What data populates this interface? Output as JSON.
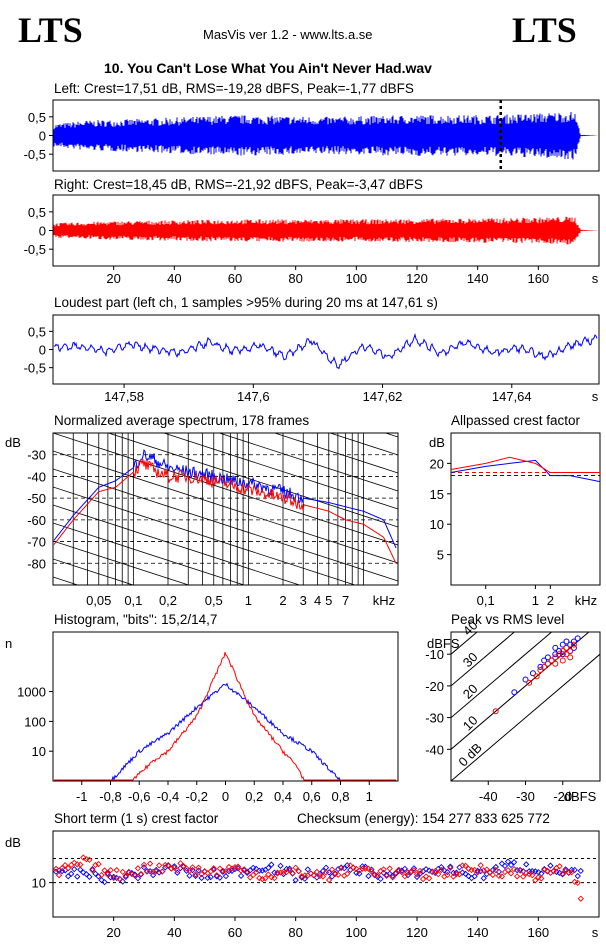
{
  "header": {
    "logo_left": "LTS",
    "logo_right": "LTS",
    "app_info": "MasVis ver 1.2 - www.lts.a.se",
    "file_title": "10. You Can't Lose What You Ain't Never Had.wav"
  },
  "colors": {
    "left": "#0000ff",
    "right": "#ff0000",
    "axis": "#000000",
    "background": "#ffffff"
  },
  "panels": {
    "left_wave": {
      "label": "Left: Crest=17,51 dB, RMS=-19,28 dBFS, Peak=-1,77 dBFS",
      "ticks": [
        "0,5",
        "0",
        "-0,5"
      ]
    },
    "right_wave": {
      "label": "Right: Crest=18,45 dB, RMS=-21,92 dBFS, Peak=-3,47 dBFS",
      "ticks": [
        "0,5",
        "0",
        "-0,5"
      ],
      "xticks": [
        "20",
        "40",
        "60",
        "80",
        "100",
        "120",
        "140",
        "160"
      ],
      "xunit": "s"
    },
    "loudest": {
      "label": "Loudest part (left  ch, 1 samples >95% during 20 ms at 147,61 s)",
      "ticks": [
        "0,5",
        "0",
        "-0,5"
      ],
      "xticks": [
        "147,58",
        "147,6",
        "147,62",
        "147,64"
      ],
      "xunit": "s"
    },
    "spectrum": {
      "label": "Normalized average spectrum, 178 frames",
      "yunit": "dB",
      "yticks": [
        "-30",
        "-40",
        "-50",
        "-60",
        "-70",
        "-80"
      ],
      "xticks": [
        "0,05",
        "0,1",
        "0,2",
        "0,5",
        "1",
        "2",
        "3",
        "4",
        "5",
        "7"
      ],
      "xunit": "kHz"
    },
    "allpass": {
      "label": "Allpassed crest factor",
      "yunit": "dB",
      "yticks": [
        "20",
        "15",
        "10",
        "5"
      ],
      "xticks": [
        "0,1",
        "1",
        "2"
      ],
      "xunit": "kHz"
    },
    "histogram": {
      "label": "Histogram, \"bits\": 15,2/14,7",
      "yunit": "n",
      "yticks": [
        "1000",
        "100",
        "10"
      ],
      "xticks": [
        "-1",
        "-0,8",
        "-0,6",
        "-0,4",
        "-0,2",
        "0",
        "0,2",
        "0,4",
        "0,6",
        "0,8",
        "1"
      ]
    },
    "peak_rms": {
      "label": "Peak vs RMS level",
      "yunit": "dBFS",
      "yticks": [
        "-10",
        "-20",
        "-30",
        "-40"
      ],
      "xticks": [
        "-40",
        "-30",
        "-20"
      ],
      "xunit": "dBFS",
      "diag_labels": [
        "40",
        "30",
        "20",
        "10",
        "0 dB"
      ]
    },
    "crest_short": {
      "label": "Short term (1 s) crest factor",
      "checksum": "Checksum (energy):   154 277 833 625 772",
      "yunit": "dB",
      "yticks": [
        "10"
      ],
      "xticks": [
        "20",
        "40",
        "60",
        "80",
        "100",
        "120",
        "140",
        "160"
      ],
      "xunit": "s"
    }
  },
  "chart_data": [
    {
      "type": "area",
      "title": "Left: Crest=17,51 dB, RMS=-19,28 dBFS, Peak=-1,77 dBFS",
      "ylim": [
        -0.95,
        0.95
      ],
      "xlim": [
        0,
        180
      ],
      "series": [
        {
          "name": "left",
          "envelope": [
            [
              0,
              0.3
            ],
            [
              10,
              0.4
            ],
            [
              30,
              0.45
            ],
            [
              60,
              0.55
            ],
            [
              90,
              0.5
            ],
            [
              120,
              0.55
            ],
            [
              145,
              0.55
            ],
            [
              160,
              0.6
            ],
            [
              172,
              0.65
            ],
            [
              174,
              0.02
            ],
            [
              180,
              0
            ]
          ]
        }
      ],
      "marker_x": 147.61
    },
    {
      "type": "area",
      "title": "Right: Crest=18,45 dB, RMS=-21,92 dBFS, Peak=-3,47 dBFS",
      "ylim": [
        -0.95,
        0.95
      ],
      "xlim": [
        0,
        180
      ],
      "series": [
        {
          "name": "right",
          "envelope": [
            [
              0,
              0.2
            ],
            [
              20,
              0.25
            ],
            [
              60,
              0.3
            ],
            [
              100,
              0.3
            ],
            [
              140,
              0.33
            ],
            [
              160,
              0.35
            ],
            [
              172,
              0.38
            ],
            [
              174,
              0.02
            ],
            [
              180,
              0
            ]
          ]
        }
      ]
    },
    {
      "type": "line",
      "title": "Loudest part (left  ch, 1 samples >95% during 20 ms at 147,61 s)",
      "ylim": [
        -0.95,
        0.95
      ],
      "xlim": [
        147.569,
        147.6535
      ],
      "series": [
        {
          "name": "left",
          "x": [
            147.569,
            147.573,
            147.577,
            147.581,
            147.585,
            147.589,
            147.593,
            147.597,
            147.601,
            147.605,
            147.609,
            147.613,
            147.617,
            147.621,
            147.625,
            147.629,
            147.633,
            147.637,
            147.641,
            147.645,
            147.649,
            147.653
          ],
          "y": [
            0.05,
            0.1,
            -0.05,
            0.15,
            0.0,
            -0.1,
            0.2,
            -0.05,
            0.1,
            -0.2,
            0.25,
            -0.45,
            0.1,
            -0.2,
            0.3,
            -0.1,
            0.2,
            -0.1,
            0.05,
            -0.2,
            0.1,
            0.3
          ]
        }
      ]
    },
    {
      "type": "line",
      "title": "Normalized average spectrum, 178 frames",
      "xscale": "log",
      "xlim": [
        0.02,
        20
      ],
      "ylim": [
        -90,
        -20
      ],
      "series": [
        {
          "name": "left",
          "x": [
            0.02,
            0.03,
            0.05,
            0.07,
            0.1,
            0.12,
            0.15,
            0.2,
            0.3,
            0.5,
            0.7,
            1,
            2,
            3,
            5,
            7,
            10,
            15,
            20
          ],
          "y": [
            -70,
            -58,
            -45,
            -42,
            -36,
            -30,
            -32,
            -36,
            -38,
            -40,
            -42,
            -43,
            -47,
            -50,
            -52,
            -54,
            -56,
            -60,
            -75
          ]
        },
        {
          "name": "right",
          "x": [
            0.02,
            0.03,
            0.05,
            0.07,
            0.1,
            0.12,
            0.15,
            0.2,
            0.3,
            0.5,
            0.7,
            1,
            2,
            3,
            5,
            7,
            10,
            15,
            20
          ],
          "y": [
            -72,
            -60,
            -47,
            -45,
            -38,
            -34,
            -37,
            -40,
            -40,
            -42,
            -44,
            -46,
            -50,
            -53,
            -56,
            -60,
            -62,
            -68,
            -82
          ]
        }
      ]
    },
    {
      "type": "line",
      "title": "Allpassed crest factor",
      "xscale": "log",
      "xlim": [
        0.02,
        20
      ],
      "ylim": [
        0,
        25
      ],
      "series": [
        {
          "name": "left",
          "x": [
            0.02,
            0.1,
            0.3,
            1,
            2,
            5,
            20
          ],
          "y": [
            18.5,
            19.5,
            20,
            20.5,
            18,
            18,
            17
          ]
        },
        {
          "name": "right",
          "x": [
            0.02,
            0.1,
            0.3,
            1,
            2,
            5,
            20
          ],
          "y": [
            19,
            20,
            21,
            20,
            18.5,
            18.5,
            18.5
          ]
        }
      ],
      "reference_lines": [
        {
          "name": "left",
          "y": 18
        },
        {
          "name": "right",
          "y": 18.5
        }
      ]
    },
    {
      "type": "line",
      "title": "Histogram, \"bits\": 15,2/14,7",
      "yscale": "log",
      "xlim": [
        -1.2,
        1.2
      ],
      "ylim": [
        1,
        100000
      ],
      "series": [
        {
          "name": "left",
          "x": [
            -0.8,
            -0.6,
            -0.4,
            -0.2,
            0,
            0.2,
            0.4,
            0.6,
            0.8
          ],
          "y": [
            1,
            10,
            40,
            300,
            1800,
            300,
            40,
            10,
            1
          ]
        },
        {
          "name": "right",
          "x": [
            -0.65,
            -0.5,
            -0.4,
            -0.2,
            0,
            0.2,
            0.4,
            0.5,
            0.55
          ],
          "y": [
            1,
            5,
            10,
            150,
            20000,
            150,
            10,
            3,
            1
          ]
        }
      ]
    },
    {
      "type": "scatter",
      "title": "Peak vs RMS level",
      "xlim": [
        -50,
        -10
      ],
      "ylim": [
        -50,
        -3
      ],
      "series": [
        {
          "name": "left",
          "x": [
            -33,
            -30,
            -28,
            -26,
            -25,
            -24,
            -23,
            -22,
            -22,
            -21,
            -20,
            -20,
            -19,
            -19,
            -18,
            -18,
            -17,
            -17,
            -16
          ],
          "y": [
            -22,
            -18,
            -16,
            -14,
            -12,
            -11,
            -12,
            -10,
            -8,
            -9,
            -7,
            -10,
            -8,
            -6,
            -9,
            -7,
            -8,
            -6,
            -5
          ]
        },
        {
          "name": "right",
          "x": [
            -38,
            -29,
            -27,
            -26,
            -25,
            -24,
            -23,
            -22,
            -22,
            -21,
            -20,
            -20,
            -19,
            -19,
            -18,
            -18,
            -17
          ],
          "y": [
            -28,
            -19,
            -17,
            -15,
            -14,
            -13,
            -12,
            -11,
            -13,
            -10,
            -12,
            -9,
            -10,
            -8,
            -11,
            -9,
            -7
          ]
        }
      ],
      "diagonals_db": [
        40,
        30,
        20,
        10,
        0
      ]
    },
    {
      "type": "scatter",
      "title": "Short term (1 s) crest factor",
      "xlim": [
        0,
        180
      ],
      "ylim": [
        0,
        25
      ],
      "series": [
        {
          "name": "left",
          "x": [
            2,
            10,
            20,
            30,
            40,
            50,
            60,
            70,
            80,
            90,
            100,
            110,
            120,
            130,
            140,
            150,
            160,
            170,
            174
          ],
          "y": [
            12,
            13,
            11,
            13,
            14,
            12,
            13,
            15,
            12,
            13,
            14,
            12,
            13,
            14,
            12,
            15,
            14,
            13,
            12
          ]
        },
        {
          "name": "right",
          "x": [
            2,
            10,
            20,
            30,
            40,
            50,
            60,
            70,
            80,
            90,
            100,
            110,
            120,
            130,
            140,
            150,
            160,
            170,
            175
          ],
          "y": [
            13,
            16,
            12,
            14,
            15,
            13,
            14,
            12,
            13,
            12,
            14,
            13,
            12,
            13,
            14,
            13,
            12,
            14,
            5
          ]
        }
      ],
      "reference_lines": [
        {
          "y": 17
        },
        {
          "y": 10
        }
      ]
    }
  ]
}
